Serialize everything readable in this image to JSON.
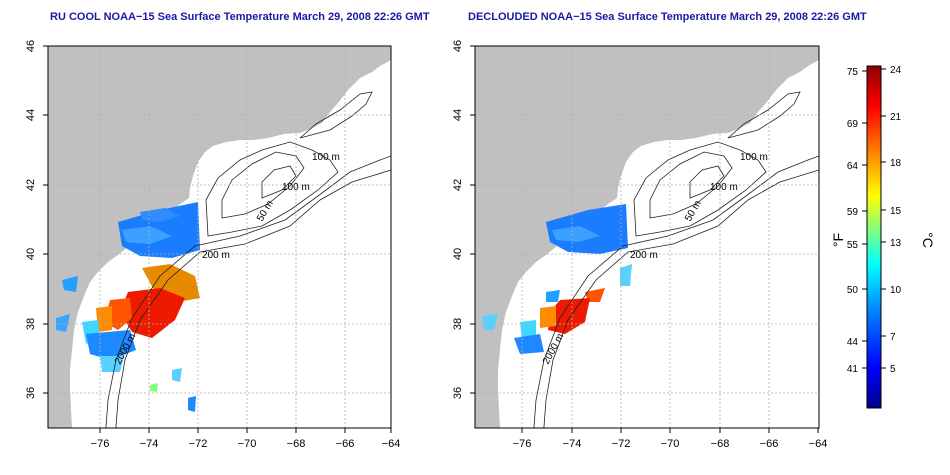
{
  "panels": [
    {
      "title": "RU COOL NOAA−15 Sea Surface Temperature March 29, 2008 22:26 GMT",
      "x_ticks": [
        "−76",
        "−74",
        "−72",
        "−70",
        "−68",
        "−66",
        "−64"
      ],
      "y_ticks": [
        "36",
        "38",
        "40",
        "42",
        "44",
        "46"
      ],
      "contour_labels": [
        "100 m",
        "100 m",
        "50 m",
        "200 m",
        "2000 m"
      ]
    },
    {
      "title": "DECLOUDED NOAA−15 Sea Surface Temperature March 29, 2008 22:26 GMT",
      "x_ticks": [
        "−76",
        "−74",
        "−72",
        "−70",
        "−68",
        "−66",
        "−64"
      ],
      "y_ticks": [
        "36",
        "38",
        "40",
        "42",
        "44",
        "46"
      ],
      "contour_labels": [
        "100 m",
        "100 m",
        "50 m",
        "200 m",
        "2000 m"
      ]
    }
  ],
  "colorbar": {
    "f_label": "°F",
    "c_label": "°C",
    "f_ticks": [
      "75",
      "69",
      "64",
      "59",
      "55",
      "50",
      "44",
      "41"
    ],
    "c_ticks": [
      "24",
      "21",
      "18",
      "15",
      "13",
      "10",
      "7",
      "5"
    ],
    "colors": [
      "#00008f",
      "#0000ff",
      "#0080ff",
      "#00ffff",
      "#80ff80",
      "#ffff00",
      "#ff8000",
      "#ff0000",
      "#8f0000"
    ]
  },
  "colors": {
    "land": "#c0c0c0",
    "title": "#1a1aa6",
    "grid": "#b0b0b0"
  }
}
